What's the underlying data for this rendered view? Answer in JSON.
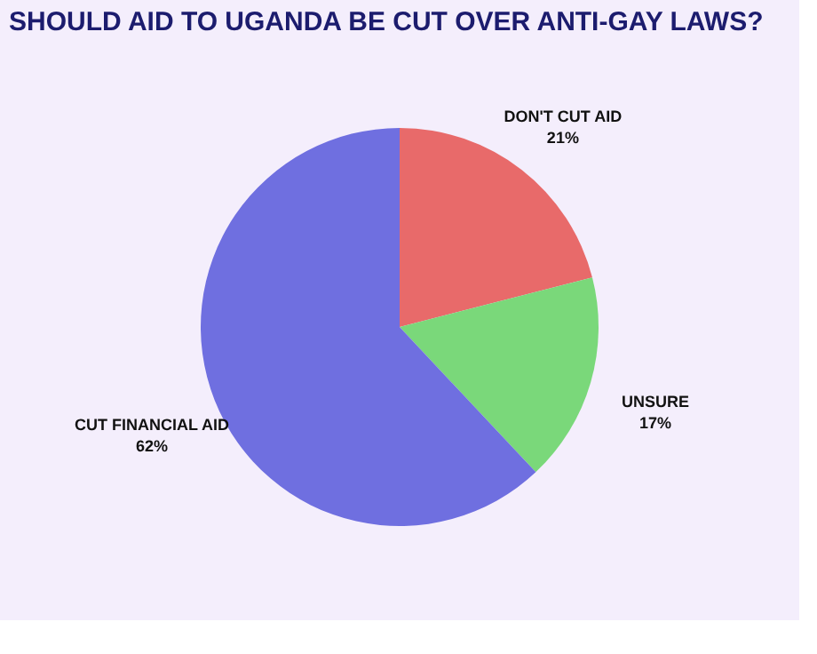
{
  "chart_data": {
    "type": "pie",
    "title": "SHOULD AID TO UGANDA BE CUT OVER ANTI-GAY LAWS?",
    "categories": [
      "DON'T CUT AID",
      "UNSURE",
      "CUT FINANCIAL AID"
    ],
    "values": [
      21,
      17,
      62
    ],
    "value_labels": [
      "21%",
      "17%",
      "62%"
    ],
    "colors": [
      "#e86a6a",
      "#7ad87a",
      "#6f6fe0"
    ],
    "legend": false
  }
}
